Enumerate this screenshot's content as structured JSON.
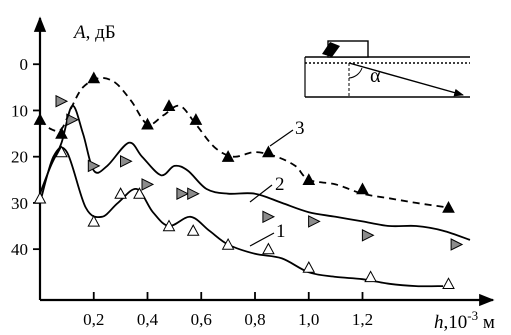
{
  "chart_data": {
    "type": "line",
    "y_axis": {
      "label_var": "A",
      "label_unit": ", дБ",
      "inverted": true,
      "ticks": [
        "0",
        "10",
        "20",
        "30",
        "40"
      ],
      "tick_values": [
        0,
        10,
        20,
        30,
        40
      ],
      "range": [
        -10,
        51
      ]
    },
    "x_axis": {
      "label_var": "h",
      "label_mid": ",10",
      "label_exp": "-3",
      "label_unit": " м",
      "ticks": [
        "0,2",
        "0,4",
        "0,6",
        "0,8",
        "1,0",
        "1,2"
      ],
      "tick_values": [
        0.2,
        0.4,
        0.6,
        0.8,
        1.0,
        1.2
      ],
      "range": [
        0,
        1.6
      ]
    },
    "series": [
      {
        "curve_label": "1",
        "line_style": "solid",
        "marker": "open-triangle-up",
        "color": "#000000",
        "curve": [
          [
            0.0,
            30
          ],
          [
            0.05,
            20
          ],
          [
            0.1,
            19
          ],
          [
            0.17,
            31
          ],
          [
            0.23,
            33
          ],
          [
            0.29,
            30
          ],
          [
            0.36,
            27
          ],
          [
            0.42,
            32
          ],
          [
            0.48,
            35
          ],
          [
            0.56,
            33
          ],
          [
            0.63,
            36
          ],
          [
            0.7,
            39
          ],
          [
            0.8,
            41
          ],
          [
            0.9,
            42
          ],
          [
            1.0,
            45
          ],
          [
            1.1,
            46
          ],
          [
            1.2,
            46.5
          ],
          [
            1.3,
            47.5
          ],
          [
            1.4,
            48
          ],
          [
            1.5,
            48
          ]
        ],
        "points": [
          [
            0.0,
            29
          ],
          [
            0.08,
            19
          ],
          [
            0.2,
            34
          ],
          [
            0.3,
            28
          ],
          [
            0.37,
            28
          ],
          [
            0.48,
            35
          ],
          [
            0.57,
            36
          ],
          [
            0.7,
            39
          ],
          [
            0.85,
            40
          ],
          [
            1.0,
            44
          ],
          [
            1.23,
            46
          ],
          [
            1.52,
            47.5
          ]
        ]
      },
      {
        "curve_label": "2",
        "line_style": "solid",
        "marker": "filled-triangle-right",
        "color": "#000000",
        "curve": [
          [
            0.0,
            28
          ],
          [
            0.04,
            22
          ],
          [
            0.08,
            17
          ],
          [
            0.12,
            9
          ],
          [
            0.16,
            15
          ],
          [
            0.2,
            23
          ],
          [
            0.25,
            22
          ],
          [
            0.33,
            17
          ],
          [
            0.38,
            20
          ],
          [
            0.45,
            24
          ],
          [
            0.5,
            22
          ],
          [
            0.55,
            23
          ],
          [
            0.62,
            27
          ],
          [
            0.7,
            28
          ],
          [
            0.8,
            28
          ],
          [
            0.9,
            30
          ],
          [
            1.0,
            32
          ],
          [
            1.1,
            33
          ],
          [
            1.2,
            34
          ],
          [
            1.3,
            35
          ],
          [
            1.4,
            35
          ],
          [
            1.5,
            36
          ],
          [
            1.6,
            38
          ]
        ],
        "points": [
          [
            0.08,
            8
          ],
          [
            0.12,
            12
          ],
          [
            0.2,
            22
          ],
          [
            0.32,
            21
          ],
          [
            0.4,
            26
          ],
          [
            0.53,
            28
          ],
          [
            0.57,
            28
          ],
          [
            0.85,
            33
          ],
          [
            1.02,
            34
          ],
          [
            1.22,
            37
          ],
          [
            1.55,
            39
          ]
        ]
      },
      {
        "curve_label": "3",
        "line_style": "dashed",
        "marker": "filled-triangle-up",
        "color": "#000000",
        "curve": [
          [
            0.0,
            12
          ],
          [
            0.04,
            14
          ],
          [
            0.08,
            14
          ],
          [
            0.12,
            9
          ],
          [
            0.16,
            5
          ],
          [
            0.22,
            3
          ],
          [
            0.28,
            4
          ],
          [
            0.34,
            8
          ],
          [
            0.4,
            13
          ],
          [
            0.46,
            11
          ],
          [
            0.52,
            9
          ],
          [
            0.58,
            13
          ],
          [
            0.65,
            18
          ],
          [
            0.72,
            20
          ],
          [
            0.8,
            19
          ],
          [
            0.88,
            20
          ],
          [
            0.95,
            22
          ],
          [
            1.0,
            25
          ],
          [
            1.1,
            26
          ],
          [
            1.2,
            28
          ],
          [
            1.3,
            29
          ],
          [
            1.4,
            30
          ],
          [
            1.52,
            31
          ]
        ],
        "points": [
          [
            0.0,
            12
          ],
          [
            0.08,
            15
          ],
          [
            0.2,
            3
          ],
          [
            0.4,
            13
          ],
          [
            0.48,
            9
          ],
          [
            0.58,
            12
          ],
          [
            0.7,
            20
          ],
          [
            0.85,
            19
          ],
          [
            1.0,
            25
          ],
          [
            1.2,
            27
          ],
          [
            1.52,
            31
          ]
        ]
      }
    ]
  }
}
